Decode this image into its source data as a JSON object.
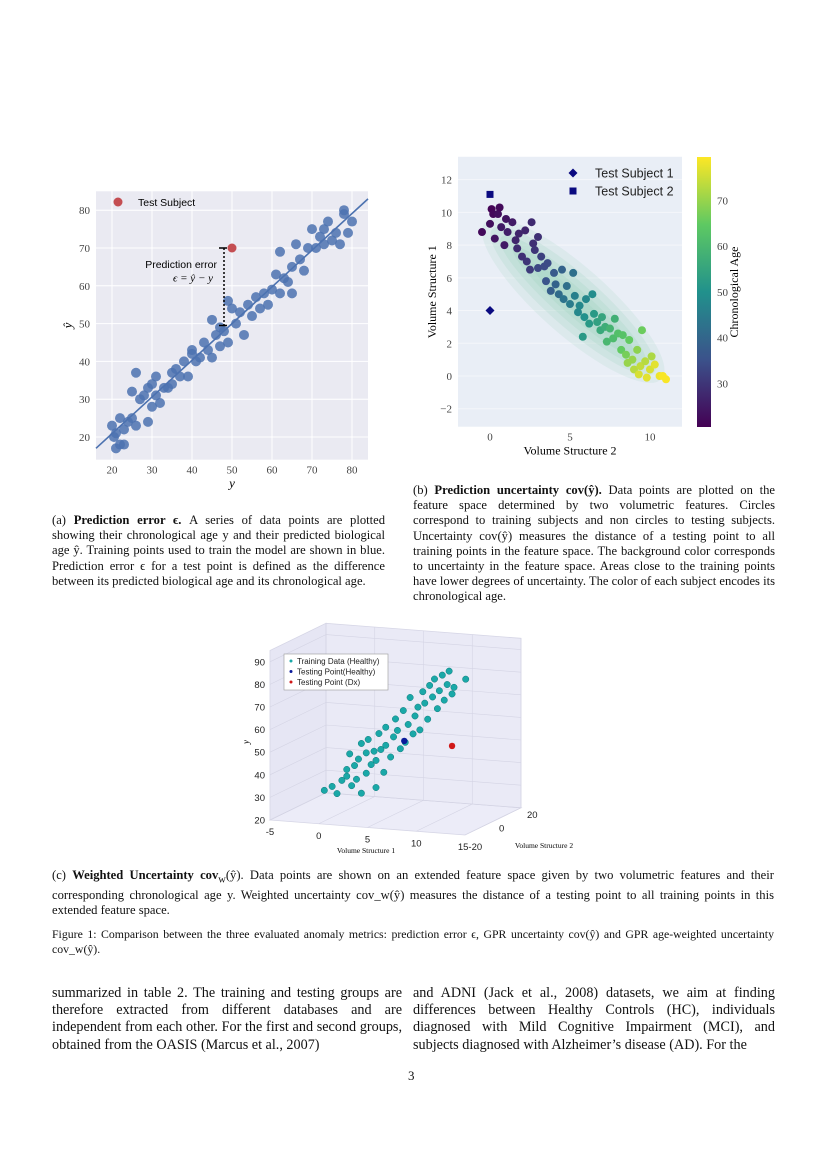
{
  "figure_a": {
    "caption_label": "(a)",
    "caption_title": "Prediction error ϵ.",
    "caption_text": " A series of data points are plotted showing their chronological age y and their predicted biological age ŷ. Training points used to train the model are shown in blue. Prediction error ϵ for a test point is defined as the difference between its predicted biological age and its chronological age.",
    "chart_data": {
      "type": "scatter",
      "xlabel": "y",
      "ylabel": "ŷ",
      "xlim": [
        16,
        84
      ],
      "ylim": [
        14,
        85
      ],
      "xticks": [
        20,
        30,
        40,
        50,
        60,
        70,
        80
      ],
      "yticks": [
        20,
        30,
        40,
        50,
        60,
        70,
        80
      ],
      "grid": true,
      "legend": {
        "label": "Test Subject",
        "position": "top-left"
      },
      "annotation": {
        "line1": "Prediction error",
        "line2": "ϵ = ŷ − y"
      },
      "regression_line": [
        [
          16,
          17
        ],
        [
          84,
          83
        ]
      ],
      "training_color": "#4c72b0",
      "test_color": "#c44e52",
      "test_subject": {
        "y": 50,
        "y_hat": 70,
        "error_bar_from": 49.5
      },
      "training_points": [
        [
          20,
          23
        ],
        [
          20.5,
          20
        ],
        [
          21,
          21
        ],
        [
          21,
          17
        ],
        [
          22,
          25
        ],
        [
          22,
          18
        ],
        [
          23,
          18
        ],
        [
          23,
          22
        ],
        [
          24,
          24
        ],
        [
          25,
          25
        ],
        [
          25,
          32
        ],
        [
          26,
          23
        ],
        [
          26,
          37
        ],
        [
          27,
          30
        ],
        [
          28,
          31
        ],
        [
          29,
          24
        ],
        [
          29,
          33
        ],
        [
          30,
          28
        ],
        [
          30,
          34
        ],
        [
          31,
          31
        ],
        [
          31,
          36
        ],
        [
          32,
          29
        ],
        [
          33,
          33
        ],
        [
          34,
          33
        ],
        [
          35,
          37
        ],
        [
          35,
          34
        ],
        [
          36,
          38
        ],
        [
          37,
          36
        ],
        [
          38,
          40
        ],
        [
          39,
          36
        ],
        [
          40,
          42
        ],
        [
          40,
          43
        ],
        [
          41,
          40
        ],
        [
          42,
          41
        ],
        [
          43,
          45
        ],
        [
          44,
          43
        ],
        [
          45,
          41
        ],
        [
          45,
          51
        ],
        [
          46,
          47
        ],
        [
          47,
          44
        ],
        [
          47,
          49
        ],
        [
          48,
          48
        ],
        [
          49,
          45
        ],
        [
          49,
          56
        ],
        [
          50,
          54
        ],
        [
          51,
          50
        ],
        [
          52,
          53
        ],
        [
          53,
          47
        ],
        [
          54,
          55
        ],
        [
          55,
          52
        ],
        [
          56,
          57
        ],
        [
          57,
          54
        ],
        [
          58,
          58
        ],
        [
          59,
          55
        ],
        [
          60,
          59
        ],
        [
          61,
          63
        ],
        [
          62,
          69
        ],
        [
          62,
          58
        ],
        [
          63,
          62
        ],
        [
          64,
          61
        ],
        [
          65,
          65
        ],
        [
          65,
          58
        ],
        [
          66,
          71
        ],
        [
          67,
          67
        ],
        [
          68,
          64
        ],
        [
          69,
          70
        ],
        [
          70,
          75
        ],
        [
          71,
          70
        ],
        [
          72,
          73
        ],
        [
          73,
          75
        ],
        [
          73,
          71
        ],
        [
          74,
          77
        ],
        [
          75,
          72
        ],
        [
          76,
          74
        ],
        [
          77,
          71
        ],
        [
          78,
          79
        ],
        [
          79,
          74
        ],
        [
          80,
          77
        ],
        [
          78,
          80
        ]
      ]
    }
  },
  "figure_b": {
    "caption_label": "(b)",
    "caption_title": "Prediction uncertainty cov(ŷ).",
    "caption_text": " Data points are plotted on the feature space determined by two volumetric features. Circles correspond to training subjects and non circles to testing subjects. Uncertainty cov(ŷ) measures the distance of a testing point to all training points in the feature space. The background color corresponds to uncertainty in the feature space. Areas close to the training points have lower degrees of uncertainty. The color of each subject encodes its chronological age.",
    "chart_data": {
      "type": "scatter",
      "xlabel": "Volume Structure 2",
      "ylabel": "Volume Structure 1",
      "colorbar_label": "Chronological Age",
      "xlim": [
        -2,
        12
      ],
      "ylim": [
        -3.1,
        13.4
      ],
      "xticks": [
        0,
        5,
        10
      ],
      "yticks": [
        -2,
        0,
        2,
        4,
        6,
        8,
        10,
        12
      ],
      "colorbar_ticks": [
        30,
        40,
        50,
        60,
        70
      ],
      "colorbar_range": [
        20.5,
        79.5
      ],
      "colormap": "viridis",
      "legend_position": "top-right",
      "test_color": "#0a0a80",
      "test_subjects": [
        {
          "label": "Test Subject 1",
          "marker": "diamond",
          "x": 0,
          "y": 4
        },
        {
          "label": "Test Subject 2",
          "marker": "square",
          "x": 0,
          "y": 11.1
        }
      ],
      "training_points_xy_age": [
        [
          -0.5,
          8.8,
          22
        ],
        [
          0,
          9.3,
          23
        ],
        [
          0.1,
          10.2,
          21
        ],
        [
          0.2,
          9.9,
          22
        ],
        [
          0.3,
          8.4,
          24
        ],
        [
          0.5,
          9.9,
          23
        ],
        [
          0.6,
          10.3,
          22
        ],
        [
          0.7,
          9.1,
          25
        ],
        [
          0.9,
          8,
          25
        ],
        [
          1,
          9.6,
          24
        ],
        [
          1.1,
          8.8,
          26
        ],
        [
          1.4,
          9.4,
          25
        ],
        [
          1.6,
          8.3,
          27
        ],
        [
          1.7,
          7.8,
          28
        ],
        [
          1.8,
          8.7,
          27
        ],
        [
          2,
          7.3,
          29
        ],
        [
          2.2,
          8.9,
          27
        ],
        [
          2.3,
          7,
          30
        ],
        [
          2.5,
          6.5,
          31
        ],
        [
          2.6,
          9.4,
          28
        ],
        [
          2.7,
          8.1,
          29
        ],
        [
          2.8,
          7.7,
          30
        ],
        [
          3,
          8.5,
          29
        ],
        [
          3,
          6.6,
          33
        ],
        [
          3.2,
          7.3,
          32
        ],
        [
          3.4,
          6.7,
          34
        ],
        [
          3.5,
          5.8,
          36
        ],
        [
          3.6,
          6.9,
          34
        ],
        [
          3.8,
          5.2,
          38
        ],
        [
          4,
          6.3,
          37
        ],
        [
          4.1,
          5.6,
          39
        ],
        [
          4.3,
          5,
          41
        ],
        [
          4.5,
          6.5,
          39
        ],
        [
          4.6,
          4.7,
          43
        ],
        [
          4.8,
          5.5,
          42
        ],
        [
          5,
          4.4,
          45
        ],
        [
          5.2,
          6.3,
          42
        ],
        [
          5.3,
          4.9,
          46
        ],
        [
          5.5,
          3.9,
          48
        ],
        [
          5.6,
          4.3,
          48
        ],
        [
          5.8,
          2.4,
          52
        ],
        [
          5.9,
          3.6,
          50
        ],
        [
          6,
          4.7,
          48
        ],
        [
          6.2,
          3.2,
          52
        ],
        [
          6.4,
          5,
          49
        ],
        [
          6.5,
          3.8,
          52
        ],
        [
          6.7,
          3.3,
          54
        ],
        [
          6.9,
          2.8,
          56
        ],
        [
          7,
          3.6,
          55
        ],
        [
          7.2,
          3,
          57
        ],
        [
          7.3,
          2.1,
          60
        ],
        [
          7.5,
          2.9,
          59
        ],
        [
          7.7,
          2.3,
          61
        ],
        [
          7.8,
          3.5,
          58
        ],
        [
          8,
          2.6,
          62
        ],
        [
          8.2,
          1.6,
          65
        ],
        [
          8.3,
          2.5,
          63
        ],
        [
          8.5,
          1.3,
          67
        ],
        [
          8.6,
          0.8,
          70
        ],
        [
          8.7,
          2.2,
          65
        ],
        [
          8.9,
          1,
          70
        ],
        [
          9,
          0.4,
          73
        ],
        [
          9.2,
          1.6,
          69
        ],
        [
          9.3,
          0.1,
          76
        ],
        [
          9.4,
          0.6,
          74
        ],
        [
          9.5,
          2.8,
          66
        ],
        [
          9.7,
          0.9,
          73
        ],
        [
          9.8,
          -0.1,
          77
        ],
        [
          10,
          0.4,
          76
        ],
        [
          10.1,
          1.2,
          72
        ],
        [
          10.3,
          0.7,
          77
        ],
        [
          10.6,
          0,
          78
        ],
        [
          10.8,
          0,
          79
        ],
        [
          11,
          -0.2,
          79
        ]
      ]
    }
  },
  "figure_c": {
    "caption_label": "(c)",
    "caption_title": "Weighted Uncertainty cov",
    "caption_sub": "w",
    "caption_title_end": "(ŷ).",
    "caption_text": " Data points are shown on an extended feature space given by two volumetric features and their corresponding chronological age y. Weighted uncertainty cov_w(ŷ) measures the distance of a testing point to all training points in this extended feature space.",
    "chart_data": {
      "type": "scatter3d",
      "xlabel": "Volume Structure 1",
      "ylabel": "Volume Structure 2",
      "zlabel": "y",
      "x_tick_labels": [
        "-5",
        "0",
        "5",
        "10",
        "15-20"
      ],
      "x_ticks": [
        -5,
        0,
        5,
        10,
        15
      ],
      "y_tick_labels": [
        "0",
        "20"
      ],
      "y_ticks": [
        0,
        20
      ],
      "z_ticks": [
        20,
        30,
        40,
        50,
        60,
        70,
        80,
        90
      ],
      "legend": [
        {
          "label": "Training Data (Healthy)",
          "color": "#1aa8a8"
        },
        {
          "label": "Testing Point(Healthy)",
          "color": "#0a1a9a"
        },
        {
          "label": "Testing Point (Dx)",
          "color": "#d01818"
        }
      ],
      "legend_position": "top-left",
      "testing_healthy": [
        5.9,
        0,
        52.6
      ],
      "testing_dx": [
        10.8,
        0,
        52
      ],
      "training_points": [
        [
          -2.3,
          0,
          28
        ],
        [
          -1.5,
          0,
          30
        ],
        [
          -1,
          0,
          27
        ],
        [
          -0.5,
          0,
          33
        ],
        [
          0,
          0,
          35
        ],
        [
          0,
          0,
          38
        ],
        [
          0.3,
          0,
          45
        ],
        [
          0.5,
          0,
          31
        ],
        [
          0.8,
          0,
          40
        ],
        [
          1,
          0,
          34
        ],
        [
          1.2,
          0,
          43
        ],
        [
          1.5,
          0,
          50
        ],
        [
          1.5,
          0,
          28
        ],
        [
          2,
          0,
          37
        ],
        [
          2,
          0,
          46
        ],
        [
          2.2,
          0,
          52
        ],
        [
          2.5,
          0,
          41
        ],
        [
          2.8,
          0,
          47
        ],
        [
          3,
          0,
          31
        ],
        [
          3,
          0,
          43
        ],
        [
          3.3,
          0,
          55
        ],
        [
          3.5,
          0,
          48
        ],
        [
          3.8,
          0,
          38
        ],
        [
          4,
          0,
          58
        ],
        [
          4,
          0,
          50
        ],
        [
          4.5,
          0,
          45
        ],
        [
          4.8,
          0,
          54
        ],
        [
          5,
          0,
          62
        ],
        [
          5.2,
          0,
          57
        ],
        [
          5.5,
          0,
          49
        ],
        [
          5.8,
          0,
          66
        ],
        [
          6,
          0,
          52
        ],
        [
          6.3,
          0,
          60
        ],
        [
          6.5,
          0,
          72
        ],
        [
          6.8,
          0,
          56
        ],
        [
          7,
          0,
          64
        ],
        [
          7.3,
          0,
          68
        ],
        [
          7.5,
          0,
          58
        ],
        [
          7.8,
          0,
          75
        ],
        [
          8,
          0,
          70
        ],
        [
          8.3,
          0,
          63
        ],
        [
          8.5,
          0,
          78
        ],
        [
          8.8,
          0,
          73
        ],
        [
          9,
          0,
          81
        ],
        [
          9.3,
          0,
          68
        ],
        [
          9.5,
          0,
          76
        ],
        [
          9.8,
          0,
          83
        ],
        [
          10,
          0,
          72
        ],
        [
          10.3,
          0,
          79
        ],
        [
          10.5,
          0,
          85
        ],
        [
          10.8,
          0,
          75
        ],
        [
          11,
          0,
          78
        ],
        [
          12.2,
          0,
          82
        ]
      ]
    }
  },
  "figure_caption": {
    "label": "Figure 1:",
    "text": " Comparison between the three evaluated anomaly metrics: prediction error ϵ, GPR uncertainty cov(ŷ) and GPR age-weighted uncertainty cov_w(ŷ)."
  },
  "body": {
    "left": "summarized in table 2. The training and testing groups are therefore extracted from different databases and are independent from each other. For the first and second groups, obtained from the OASIS (Marcus et al., 2007)",
    "right": "and ADNI (Jack et al., 2008) datasets, we aim at finding differences between Healthy Controls (HC), individuals diagnosed with Mild Cognitive Impairment (MCI), and subjects diagnosed with Alzheimer’s disease (AD). For the"
  },
  "page_number": "3"
}
